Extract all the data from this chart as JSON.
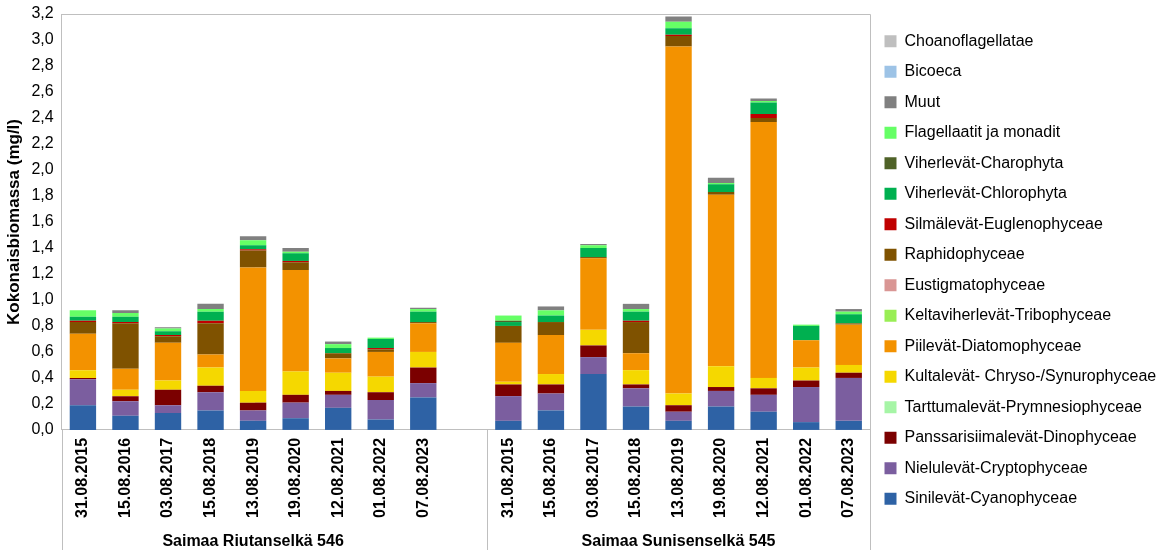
{
  "chart_data": {
    "type": "bar",
    "stacked": true,
    "ylabel": "Kokonaisbiomassa (mg/l)",
    "categories": [
      "31.08.2015",
      "15.08.2016",
      "03.08.2017",
      "15.08.2018",
      "13.08.2019",
      "19.08.2020",
      "12.08.2021",
      "01.08.2022",
      "07.08.2023",
      null,
      "31.08.2015",
      "15.08.2016",
      "03.08.2017",
      "15.08.2018",
      "13.08.2019",
      "19.08.2020",
      "12.08.2021",
      "01.08.2022",
      "07.08.2023"
    ],
    "annotations": [
      "Saimaa Riutanselkä 546",
      "Saimaa Sunisenselkä 545"
    ],
    "ylim": [
      0,
      3.2
    ],
    "yticks": [
      {
        "value": 0,
        "label": "0,0"
      },
      {
        "value": 0.2,
        "label": "0,2"
      },
      {
        "value": 0.4,
        "label": "0,4"
      },
      {
        "value": 0.6,
        "label": "0,6"
      },
      {
        "value": 0.8,
        "label": "0,8"
      },
      {
        "value": 1,
        "label": "1,0"
      },
      {
        "value": 1.2,
        "label": "1,2"
      },
      {
        "value": 1.4,
        "label": "1,4"
      },
      {
        "value": 1.6,
        "label": "1,6"
      },
      {
        "value": 1.8,
        "label": "1,8"
      },
      {
        "value": 2,
        "label": "2,0"
      },
      {
        "value": 2.2,
        "label": "2,2"
      },
      {
        "value": 2.4,
        "label": "2,4"
      },
      {
        "value": 2.6,
        "label": "2,6"
      },
      {
        "value": 2.8,
        "label": "2,8"
      },
      {
        "value": 3,
        "label": "3,0"
      },
      {
        "value": 3.2,
        "label": "3,2"
      }
    ],
    "grid": false,
    "legend": "right",
    "series": [
      {
        "name": "Sinilevät-Cyanophyceae",
        "color": "#2e62a5",
        "values": [
          0.19,
          0.11,
          0.13,
          0.15,
          0.07,
          0.09,
          0.17,
          0.08,
          0.25,
          null,
          0.07,
          0.15,
          0.43,
          0.18,
          0.07,
          0.18,
          0.14,
          0.06,
          0.07
        ]
      },
      {
        "name": "Nielulevät-Cryptophyceae",
        "color": "#7b5e9f",
        "values": [
          0.2,
          0.11,
          0.06,
          0.14,
          0.08,
          0.12,
          0.1,
          0.15,
          0.11,
          null,
          0.19,
          0.13,
          0.13,
          0.14,
          0.07,
          0.12,
          0.13,
          0.27,
          0.33
        ]
      },
      {
        "name": "Panssarisiimalevät-Dinophyceae",
        "color": "#7b0000",
        "values": [
          0.01,
          0.04,
          0.12,
          0.05,
          0.06,
          0.06,
          0.03,
          0.06,
          0.12,
          null,
          0.09,
          0.07,
          0.09,
          0.03,
          0.05,
          0.03,
          0.05,
          0.05,
          0.04
        ]
      },
      {
        "name": "Tarttumalevät-Prymnesiophyceae",
        "color": "#a6f5a6",
        "values": [
          0,
          0,
          0,
          0,
          0,
          0,
          0,
          0,
          0,
          null,
          0,
          0,
          0,
          0,
          0,
          0,
          0,
          0,
          0
        ]
      },
      {
        "name": "Kultalevät- Chryso-/Synurophyceae",
        "color": "#f5d800",
        "values": [
          0.06,
          0.05,
          0.07,
          0.14,
          0.09,
          0.18,
          0.14,
          0.12,
          0.12,
          null,
          0.02,
          0.08,
          0.12,
          0.11,
          0.09,
          0.16,
          0.08,
          0.1,
          0.06
        ]
      },
      {
        "name": "Piilevät-Diatomophyceae",
        "color": "#f39200",
        "values": [
          0.28,
          0.16,
          0.29,
          0.1,
          0.95,
          0.78,
          0.11,
          0.19,
          0.22,
          null,
          0.3,
          0.3,
          0.55,
          0.13,
          2.67,
          1.32,
          1.97,
          0.21,
          0.31
        ]
      },
      {
        "name": "Keltaviherlevät-Tribophyceae",
        "color": "#99ee55",
        "values": [
          0,
          0,
          0,
          0,
          0,
          0,
          0,
          0,
          0,
          null,
          0,
          0,
          0,
          0,
          0,
          0,
          0,
          0,
          0
        ]
      },
      {
        "name": "Eustigmatophyceae",
        "color": "#d99694",
        "values": [
          0,
          0,
          0,
          0,
          0,
          0,
          0,
          0,
          0,
          null,
          0,
          0,
          0,
          0,
          0,
          0,
          0,
          0,
          0
        ]
      },
      {
        "name": "Raphidophyceae",
        "color": "#7f5200",
        "values": [
          0.09,
          0.35,
          0.05,
          0.24,
          0.13,
          0.06,
          0.04,
          0.02,
          0.01,
          null,
          0.13,
          0.1,
          0.01,
          0.24,
          0.08,
          0.02,
          0.03,
          0,
          0.01
        ]
      },
      {
        "name": "Silmälevät-Euglenophyceae",
        "color": "#c00000",
        "values": [
          0.01,
          0.01,
          0.01,
          0.02,
          0.01,
          0.01,
          0,
          0.01,
          0,
          null,
          0,
          0,
          0,
          0.01,
          0.01,
          0,
          0.03,
          0,
          0
        ]
      },
      {
        "name": "Viherlevät-Chlorophyta",
        "color": "#00b050",
        "values": [
          0.03,
          0.04,
          0.03,
          0.07,
          0.03,
          0.06,
          0.04,
          0.07,
          0.08,
          null,
          0.03,
          0.05,
          0.07,
          0.07,
          0.05,
          0.06,
          0.09,
          0.11,
          0.07
        ]
      },
      {
        "name": "Viherlevät-Charophyta",
        "color": "#4f6228",
        "values": [
          0,
          0,
          0,
          0,
          0,
          0,
          0,
          0,
          0,
          null,
          0.01,
          0,
          0,
          0,
          0,
          0,
          0,
          0,
          0
        ]
      },
      {
        "name": "Flagellaatit ja monadit",
        "color": "#66ff66",
        "values": [
          0.05,
          0.03,
          0.02,
          0.02,
          0.04,
          0.01,
          0.03,
          0.01,
          0.02,
          null,
          0.04,
          0.04,
          0.02,
          0.02,
          0.05,
          0.01,
          0.01,
          0.01,
          0.02
        ]
      },
      {
        "name": "Muut",
        "color": "#808080",
        "values": [
          0,
          0.02,
          0.01,
          0.04,
          0.03,
          0.03,
          0.02,
          0,
          0.01,
          null,
          0,
          0.03,
          0.01,
          0.04,
          0.04,
          0.04,
          0.02,
          0,
          0.02
        ]
      },
      {
        "name": "Bicoeca",
        "color": "#9dc3e6",
        "values": [
          0,
          0,
          0,
          0,
          0,
          0,
          0,
          0,
          0,
          null,
          0,
          0,
          0,
          0,
          0,
          0,
          0,
          0,
          0
        ]
      },
      {
        "name": "Choanoflagellatae",
        "color": "#bfbfbf",
        "values": [
          0,
          0,
          0,
          0,
          0,
          0,
          0,
          0,
          0,
          null,
          0,
          0,
          0,
          0,
          0,
          0,
          0,
          0,
          0
        ]
      }
    ]
  }
}
